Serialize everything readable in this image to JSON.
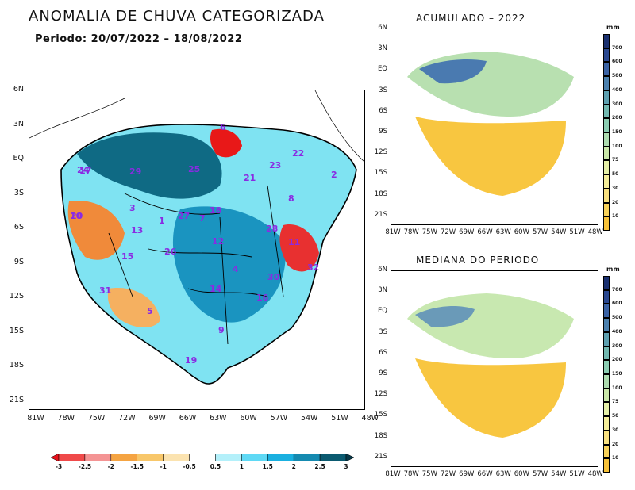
{
  "header": {
    "title": "ANOMALIA DE CHUVA CATEGORIZADA",
    "period": "Periodo: 20/07/2022 – 18/08/2022"
  },
  "main_map": {
    "lat_ticks": [
      "6N",
      "3N",
      "EQ",
      "3S",
      "6S",
      "9S",
      "12S",
      "15S",
      "18S",
      "21S"
    ],
    "lon_ticks": [
      "81W",
      "78W",
      "75W",
      "72W",
      "69W",
      "66W",
      "63W",
      "60W",
      "57W",
      "54W",
      "51W",
      "48W"
    ],
    "regions": [
      "1",
      "2",
      "3",
      "4",
      "5",
      "6",
      "7",
      "8",
      "9",
      "10",
      "11",
      "12",
      "13",
      "14",
      "15",
      "16",
      "17",
      "18",
      "19",
      "20",
      "21",
      "22",
      "23",
      "24",
      "25",
      "26",
      "27",
      "28",
      "29",
      "30",
      "31",
      "32"
    ]
  },
  "top_map": {
    "title": "ACUMULADO – 2022",
    "lat_ticks": [
      "6N",
      "3N",
      "EQ",
      "3S",
      "6S",
      "9S",
      "12S",
      "15S",
      "18S",
      "21S"
    ],
    "lon_ticks": [
      "81W",
      "78W",
      "75W",
      "72W",
      "69W",
      "66W",
      "63W",
      "60W",
      "57W",
      "54W",
      "51W",
      "48W"
    ]
  },
  "bottom_map": {
    "title": "MEDIANA DO PERIODO",
    "lat_ticks": [
      "6N",
      "3N",
      "EQ",
      "3S",
      "6S",
      "9S",
      "12S",
      "15S",
      "18S",
      "21S"
    ],
    "lon_ticks": [
      "81W",
      "78W",
      "75W",
      "72W",
      "69W",
      "66W",
      "63W",
      "60W",
      "57W",
      "54W",
      "51W",
      "48W"
    ]
  },
  "anomaly_colorbar": {
    "labels": [
      "-3",
      "-2.5",
      "-2",
      "-1.5",
      "-1",
      "-0.5",
      "0.5",
      "1",
      "1.5",
      "2",
      "2.5",
      "3"
    ],
    "colors": [
      "#e8101a",
      "#f04a4a",
      "#f49494",
      "#f5a442",
      "#f8c76a",
      "#fbe3b0",
      "#ffffff",
      "#b4f0fa",
      "#5fd9f5",
      "#1ab0e0",
      "#158ab0",
      "#0b5a70",
      "#083848"
    ]
  },
  "precip_colorbar": {
    "unit": "mm",
    "labels": [
      "10",
      "20",
      "30",
      "50",
      "75",
      "100",
      "150",
      "200",
      "300",
      "400",
      "500",
      "600",
      "700"
    ],
    "colors": [
      "#f7c23a",
      "#f8d25a",
      "#f8e080",
      "#f5ee9a",
      "#e6f0a8",
      "#cbe8aa",
      "#aedcb0",
      "#8ccdb2",
      "#72b8b0",
      "#5ea0b0",
      "#4b80ae",
      "#3a62a4",
      "#2a4890",
      "#1a3070"
    ]
  }
}
